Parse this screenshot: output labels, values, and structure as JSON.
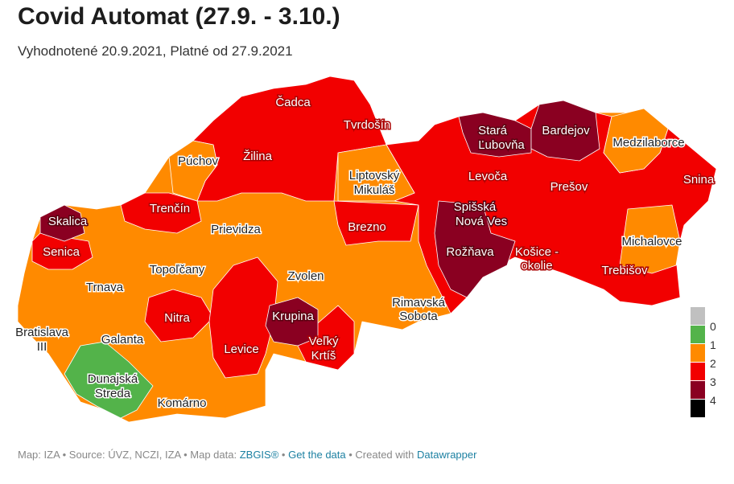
{
  "title": "Covid Automat (27.9. - 3.10.)",
  "subtitle": "Vyhodnotené 20.9.2021, Platné od 27.9.2021",
  "colors": {
    "0": "#c0c0c0",
    "1": "#53b34a",
    "2": "#ff8a00",
    "3": "#f20000",
    "4": "#8a0021",
    "5": "#000000"
  },
  "legend": [
    {
      "label": "0",
      "color": "#c0c0c0"
    },
    {
      "label": "1",
      "color": "#53b34a"
    },
    {
      "label": "2",
      "color": "#ff8a00"
    },
    {
      "label": "3",
      "color": "#f20000"
    },
    {
      "label": "4",
      "color": "#8a0021"
    },
    {
      "label": "",
      "color": "#000000"
    }
  ],
  "legend_last_label": "4",
  "labels": [
    {
      "name": "Čadca",
      "level": 3
    },
    {
      "name": "Tvrdošín",
      "level": 3
    },
    {
      "name": "Stará",
      "level": 4
    },
    {
      "name": "Ľubovňa",
      "level": 4
    },
    {
      "name": "Bardejov",
      "level": 4
    },
    {
      "name": "Púchov",
      "level": 2
    },
    {
      "name": "Žilina",
      "level": 3
    },
    {
      "name": "Medzilaborce",
      "level": 2
    },
    {
      "name": "Liptovský",
      "level": 2
    },
    {
      "name": "Mikuláš",
      "level": 2
    },
    {
      "name": "Levoča",
      "level": 3
    },
    {
      "name": "Prešov",
      "level": 3
    },
    {
      "name": "Snina",
      "level": 3
    },
    {
      "name": "Trenčín",
      "level": 3
    },
    {
      "name": "Spišská",
      "level": 4
    },
    {
      "name": "Nová Ves",
      "level": 4
    },
    {
      "name": "Skalica",
      "level": 4
    },
    {
      "name": "Prievidza",
      "level": 2
    },
    {
      "name": "Brezno",
      "level": 3
    },
    {
      "name": "Senica",
      "level": 3
    },
    {
      "name": "Rožňava",
      "level": 4
    },
    {
      "name": "Košice -",
      "level": 3
    },
    {
      "name": "okolie",
      "level": 3
    },
    {
      "name": "Michalovce",
      "level": 2
    },
    {
      "name": "Topoľčany",
      "level": 2
    },
    {
      "name": "Trebišov",
      "level": 3
    },
    {
      "name": "Zvolen",
      "level": 2
    },
    {
      "name": "Trnava",
      "level": 2
    },
    {
      "name": "Rimavská",
      "level": 2
    },
    {
      "name": "Sobota",
      "level": 2
    },
    {
      "name": "Nitra",
      "level": 3
    },
    {
      "name": "Krupina",
      "level": 4
    },
    {
      "name": "Bratislava",
      "level": 2
    },
    {
      "name": "III",
      "level": 2
    },
    {
      "name": "Galanta",
      "level": 2
    },
    {
      "name": "Levice",
      "level": 3
    },
    {
      "name": "Veľký",
      "level": 3
    },
    {
      "name": "Krtíš",
      "level": 3
    },
    {
      "name": "Dunajská",
      "level": 1
    },
    {
      "name": "Streda",
      "level": 1
    },
    {
      "name": "Komárno",
      "level": 2
    }
  ],
  "footer": {
    "prefix": "Map: IZA • Source: ÚVZ, NCZI, IZA • Map data: ",
    "zbgis": "ZBGIS®",
    "sep1": " • ",
    "get_data": "Get the data",
    "sep2": " • Created with ",
    "datawrapper": "Datawrapper"
  }
}
